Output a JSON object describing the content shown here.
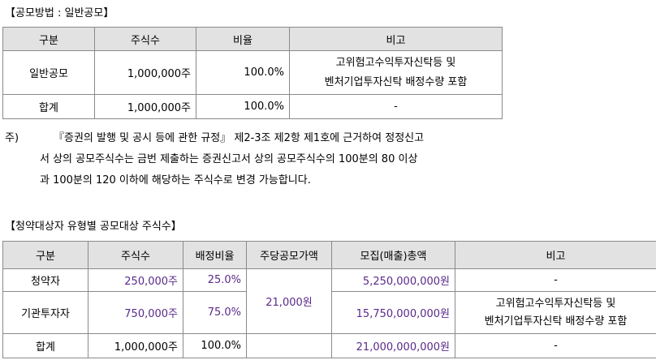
{
  "section1": {
    "title": "【공모방법 : 일반공모】",
    "headers": [
      "구분",
      "주식수",
      "비율",
      "비고"
    ],
    "rows": [
      {
        "category": "일반공모",
        "shares": "1,000,000주",
        "ratio": "100.0%",
        "remark_line1": "고위험고수익투자신탁등 및",
        "remark_line2": "벤처기업투자신탁 배정수량 포함"
      },
      {
        "category": "합계",
        "shares": "1,000,000주",
        "ratio": "100.0%",
        "remark": "-"
      }
    ]
  },
  "note": {
    "lead": "주)",
    "lines": [
      "『증권의 발행 및 공시 등에 관한 규정』 제2-3조 제2항 제1호에 근거하여 정정신고",
      "서 상의 공모주식수는 금번 제출하는 증권신고서 상의 공모주식수의 100분의 80 이상",
      "과 100분의 120 이하에 해당하는 주식수로 변경 가능합니다."
    ]
  },
  "section2": {
    "title": "【청약대상자 유형별 공모대상 주식수】",
    "headers": [
      "구분",
      "주식수",
      "배정비율",
      "주당공모가액",
      "모집(매출)총액",
      "비고"
    ],
    "price": "21,000원",
    "rows": [
      {
        "category": "청약자",
        "shares": "250,000주",
        "ratio": "25.0%",
        "total": "5,250,000,000원",
        "remark": "-"
      },
      {
        "category": "기관투자자",
        "shares": "750,000주",
        "ratio": "75.0%",
        "total": "15,750,000,000원",
        "remark_line1": "고위험고수익투자신탁등 및",
        "remark_line2": "벤처기업투자신탁 배정수량 포함"
      },
      {
        "category": "합계",
        "shares": "1,000,000주",
        "ratio": "100.0%",
        "total": "21,000,000,000원",
        "remark": "-"
      }
    ],
    "highlight_color": "#5a2a8a"
  }
}
